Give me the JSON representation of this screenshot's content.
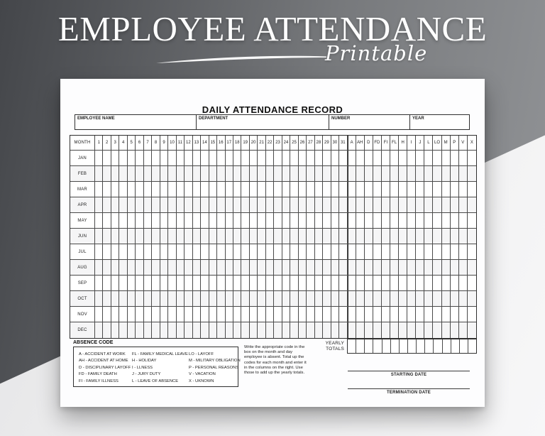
{
  "banner": {
    "title": "EMPLOYEE ATTENDANCE",
    "subtitle": "Printable"
  },
  "form": {
    "title": "DAILY ATTENDANCE RECORD",
    "fields": [
      {
        "label": "EMPLOYEE NAME"
      },
      {
        "label": "DEPARTMENT"
      },
      {
        "label": "NUMBER"
      },
      {
        "label": "YEAR"
      }
    ],
    "grid": {
      "month_header": "MONTH",
      "days": [
        "1",
        "2",
        "3",
        "4",
        "5",
        "6",
        "7",
        "8",
        "9",
        "10",
        "11",
        "12",
        "13",
        "14",
        "15",
        "16",
        "17",
        "18",
        "19",
        "20",
        "21",
        "22",
        "23",
        "24",
        "25",
        "26",
        "27",
        "28",
        "29",
        "30",
        "31"
      ],
      "codes": [
        "A",
        "AH",
        "D",
        "FD",
        "FI",
        "FL",
        "H",
        "I",
        "J",
        "L",
        "LO",
        "M",
        "P",
        "V",
        "X"
      ],
      "months": [
        "JAN",
        "FEB",
        "MAR",
        "APR",
        "MAY",
        "JUN",
        "JUL",
        "AUG",
        "SEP",
        "OCT",
        "NOV",
        "DEC"
      ]
    },
    "absence_code": {
      "heading": "ABSENCE CODE",
      "columns": [
        [
          "A - ACCIDENT AT WORK",
          "AH - ACCIDENT AT HOME",
          "D - DISCIPLINARY LAYOFF",
          "FD - FAMILY DEATH",
          "FI - FAMILY ILLNESS"
        ],
        [
          "FL - FAMILY MEDICAL LEAVE",
          "H - HOLIDAY",
          "I - LLNESS",
          "J - JURY DUTY",
          "L - LEAVE OF ABSENCE"
        ],
        [
          "LO - LAYOFF",
          "M - MILITARY OBLIGATION",
          "P - PERSONAL REASONS",
          "V - VACATION",
          "X - UKNOWN"
        ]
      ]
    },
    "note": "Write the appropriate code in the box on the month and day employee is absent. Total up the codes for each month and enter it in the columns on the right. Use those to add up the yearly totals.",
    "yearly_totals_lines": [
      "YEARLY",
      "TOTALS"
    ],
    "starting_date_label": "STARTING DATE",
    "termination_date_label": "TERMINATION DATE"
  },
  "colors": {
    "banner_dark": "#44464a",
    "banner_gray": "#939598",
    "background_light": "#f1f1f2",
    "paper": "#fdfdfe",
    "grid_line": "#4a4a4a",
    "outer_line": "#2f2f2f",
    "text": "#1c1c1c",
    "banner_text": "#ffffff"
  }
}
